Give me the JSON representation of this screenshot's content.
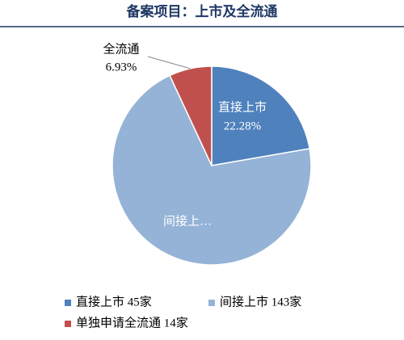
{
  "chart_data": {
    "type": "pie",
    "title": "备案项目：上市及全流通",
    "categories": [
      "直接上市",
      "间接上…",
      "全流通"
    ],
    "values": [
      22.28,
      70.79,
      6.93
    ],
    "value_labels": [
      "22.28%",
      null,
      "6.93%"
    ],
    "colors": [
      "#4f81bd",
      "#95b3d7",
      "#c0504d"
    ],
    "legend": [
      "直接上市 45家",
      "间接上市 143家",
      "单独申请全流通 14家"
    ]
  }
}
